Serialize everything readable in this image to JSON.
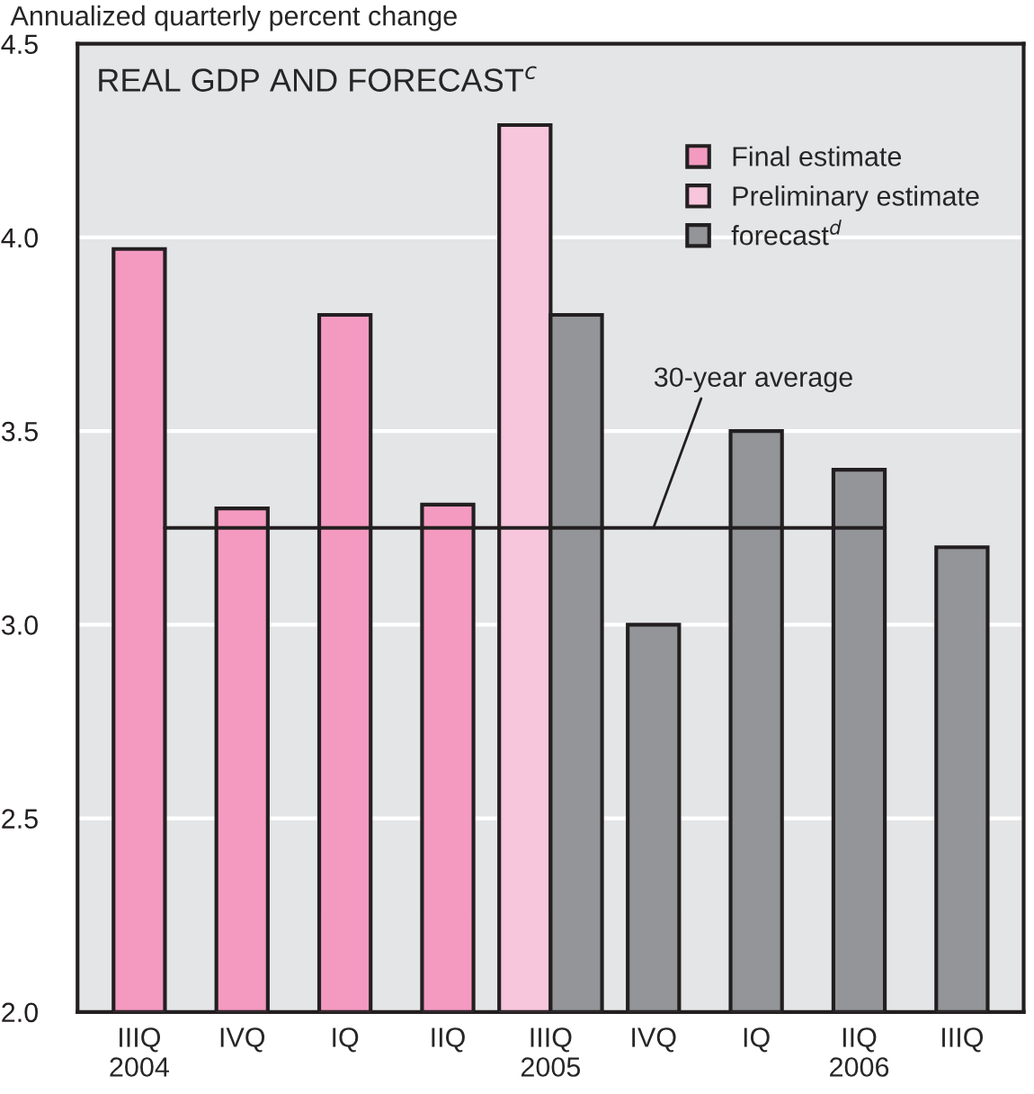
{
  "chart_data": {
    "type": "bar",
    "title": "REAL GDP AND FORECAST$^{c}$",
    "ylabel": "Annualized quarterly percent change",
    "categories": [
      "IIIQ\n2004",
      "IVQ",
      "IQ",
      "IIQ",
      "IIIQ\n2005",
      "IVQ",
      "IQ",
      "IIQ\n2006",
      "IIIQ"
    ],
    "series": [
      {
        "name": "Final estimate",
        "color": "#f49ac1",
        "values": [
          3.97,
          3.3,
          3.8,
          3.31,
          null,
          null,
          null,
          null,
          null
        ]
      },
      {
        "name": "Preliminary estimate",
        "color": "#f7c6dc",
        "values": [
          null,
          null,
          null,
          null,
          4.29,
          null,
          null,
          null,
          null
        ]
      },
      {
        "name": "forecast$^{d}$",
        "color": "#939598",
        "values": [
          null,
          null,
          null,
          null,
          3.8,
          3.0,
          3.5,
          3.4,
          3.2
        ]
      }
    ],
    "ylim": [
      2.0,
      4.5
    ],
    "yticks": [
      {
        "value": 2.0,
        "label": "2.0"
      },
      {
        "value": 2.5,
        "label": "2.5"
      },
      {
        "value": 3.0,
        "label": "3.0"
      },
      {
        "value": 3.5,
        "label": "3.5"
      },
      {
        "value": 4.0,
        "label": "4.0"
      },
      {
        "value": 4.5,
        "label": "4.5"
      }
    ],
    "ref_lines": [
      {
        "axis": "y",
        "value": 3.25,
        "label": "30-year average",
        "color": "#231f20"
      }
    ],
    "grid": "y",
    "legend": "top right"
  }
}
